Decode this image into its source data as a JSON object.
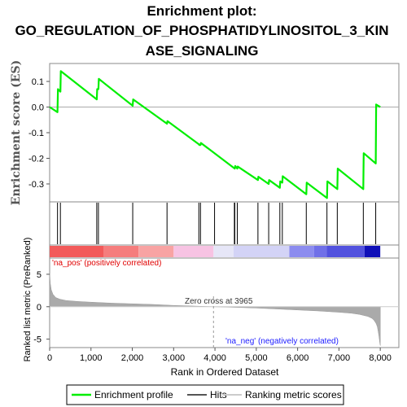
{
  "title_lines": [
    "Enrichment plot:",
    "GO_REGULATION_OF_PHOSPHATIDYLINOSITOL_3_KIN",
    "ASE_SIGNALING"
  ],
  "chart_data": [
    {
      "type": "line",
      "panel": "enrichment",
      "ylabel": "Enrichment score (ES)",
      "ylim": [
        -0.37,
        0.17
      ],
      "yticks": [
        0.1,
        0.0,
        -0.1,
        -0.2,
        -0.3
      ],
      "ytick_labels": [
        "0.1",
        "0.0",
        "-0.1",
        "-0.2",
        "-0.3"
      ],
      "zero_line": true,
      "series": [
        {
          "name": "Enrichment profile",
          "color": "#00ee00",
          "x": [
            0,
            190,
            200,
            260,
            270,
            1140,
            1150,
            1180,
            1190,
            2010,
            2020,
            2840,
            2850,
            3610,
            3620,
            3650,
            3660,
            4480,
            4490,
            4540,
            4550,
            5040,
            5050,
            5300,
            5310,
            5570,
            5580,
            5630,
            5640,
            6210,
            6220,
            6710,
            6720,
            6960,
            6970,
            7590,
            7600,
            7890,
            7900,
            8000
          ],
          "y": [
            0.0,
            -0.02,
            0.07,
            0.06,
            0.14,
            0.03,
            0.07,
            0.07,
            0.11,
            0.005,
            0.03,
            -0.065,
            -0.055,
            -0.145,
            -0.148,
            -0.148,
            -0.14,
            -0.24,
            -0.23,
            -0.24,
            -0.232,
            -0.285,
            -0.272,
            -0.3,
            -0.285,
            -0.315,
            -0.29,
            -0.295,
            -0.27,
            -0.34,
            -0.295,
            -0.355,
            -0.29,
            -0.32,
            -0.24,
            -0.32,
            -0.18,
            -0.22,
            0.01,
            0.0
          ]
        }
      ]
    },
    {
      "type": "hits",
      "panel": "hits",
      "series_name": "Hits",
      "positions": [
        190,
        260,
        1140,
        1180,
        2010,
        2840,
        3610,
        3650,
        3990,
        4470,
        4480,
        4540,
        5040,
        5300,
        5570,
        5630,
        6210,
        6710,
        6960,
        7590,
        7890
      ]
    },
    {
      "type": "heatmap",
      "panel": "rank_bar",
      "segments": [
        {
          "from": 0,
          "to": 1300,
          "color": "#f25a5a"
        },
        {
          "from": 1300,
          "to": 2150,
          "color": "#f57d7d"
        },
        {
          "from": 2150,
          "to": 3000,
          "color": "#f8a3a3"
        },
        {
          "from": 3000,
          "to": 3965,
          "color": "#f7c3e3"
        },
        {
          "from": 3965,
          "to": 4450,
          "color": "#e6e6f7"
        },
        {
          "from": 4450,
          "to": 5800,
          "color": "#d3d3f6"
        },
        {
          "from": 5800,
          "to": 6400,
          "color": "#8c8cef"
        },
        {
          "from": 6400,
          "to": 6700,
          "color": "#7070e8"
        },
        {
          "from": 6700,
          "to": 7620,
          "color": "#5252de"
        },
        {
          "from": 7620,
          "to": 8000,
          "color": "#1010b8"
        }
      ]
    },
    {
      "type": "area",
      "panel": "ranked_metric",
      "ylabel": "Ranked list metric (PreRanked)",
      "xlabel": "Rank in Ordered Dataset",
      "xlim": [
        0,
        8450
      ],
      "ylim": [
        -6.3,
        7.5
      ],
      "xticks": [
        0,
        1000,
        2000,
        3000,
        4000,
        5000,
        6000,
        7000,
        8000
      ],
      "xtick_labels": [
        "0",
        "1,000",
        "2,000",
        "3,000",
        "4,000",
        "5,000",
        "6,000",
        "7,000",
        "8,000"
      ],
      "yticks": [
        5,
        0,
        -5
      ],
      "ytick_labels": [
        "5",
        "0",
        "-5"
      ],
      "fill_color": "#aaaaaa",
      "x": [
        0,
        15,
        40,
        80,
        150,
        250,
        400,
        700,
        1000,
        1500,
        2000,
        2500,
        3000,
        3500,
        3965,
        4500,
        5000,
        5500,
        6000,
        6500,
        7000,
        7300,
        7500,
        7700,
        7800,
        7850,
        7900,
        7930,
        7950,
        7970,
        7990,
        8000
      ],
      "y": [
        5.2,
        3.6,
        2.6,
        1.9,
        1.4,
        1.15,
        0.95,
        0.8,
        0.7,
        0.55,
        0.45,
        0.35,
        0.2,
        0.1,
        0.0,
        -0.1,
        -0.2,
        -0.35,
        -0.5,
        -0.65,
        -0.85,
        -1.0,
        -1.2,
        -1.5,
        -1.8,
        -2.1,
        -2.6,
        -3.1,
        -3.8,
        -4.6,
        -5.6,
        -6.0
      ]
    }
  ],
  "annotations": {
    "positive": "'na_pos' (positively correlated)",
    "negative": "'na_neg' (negatively correlated)",
    "zero_cross": "Zero cross at 3965",
    "zero_cross_rank": 3965
  },
  "legend": {
    "items": [
      {
        "label": "Enrichment profile",
        "color": "#00ee00"
      },
      {
        "label": "Hits",
        "color": "#555555"
      },
      {
        "label": "Ranking metric scores",
        "color": "#cccccc"
      }
    ]
  },
  "colors": {
    "positive_text": "#e00000",
    "negative_text": "#2020ff",
    "axis": "#888888"
  }
}
